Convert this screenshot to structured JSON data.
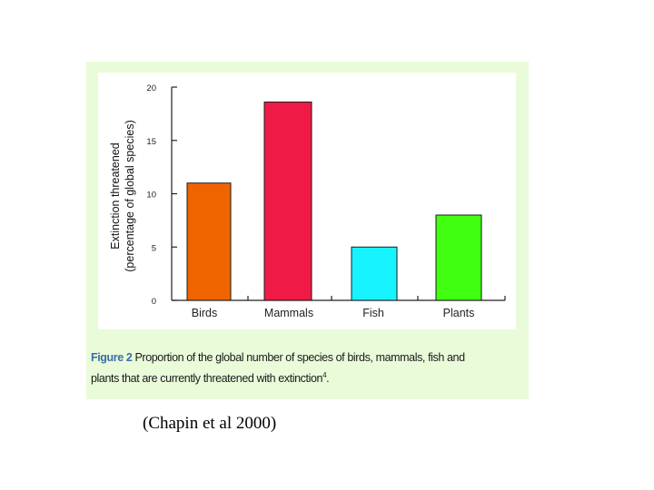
{
  "chart_data": {
    "type": "bar",
    "categories": [
      "Birds",
      "Mammals",
      "Fish",
      "Plants"
    ],
    "values": [
      11,
      18.6,
      5,
      8
    ],
    "colors": [
      "#f06400",
      "#f01a46",
      "#18f4ff",
      "#40ff10"
    ],
    "ylabel_line1": "Extinction threatened",
    "ylabel_line2": "(percentage of global species)",
    "xlabel": "",
    "ylim": [
      0,
      20
    ],
    "yticks": [
      0,
      5,
      10,
      15,
      20
    ],
    "grid": false,
    "legend": "none"
  },
  "caption": {
    "label": "Figure 2",
    "text_line1": " Proportion of the global number of species of birds, mammals, fish and",
    "text_line2": "plants that are currently threatened with extinction",
    "footnote": "4",
    "end": "."
  },
  "citation": "(Chapin et al 2000)"
}
